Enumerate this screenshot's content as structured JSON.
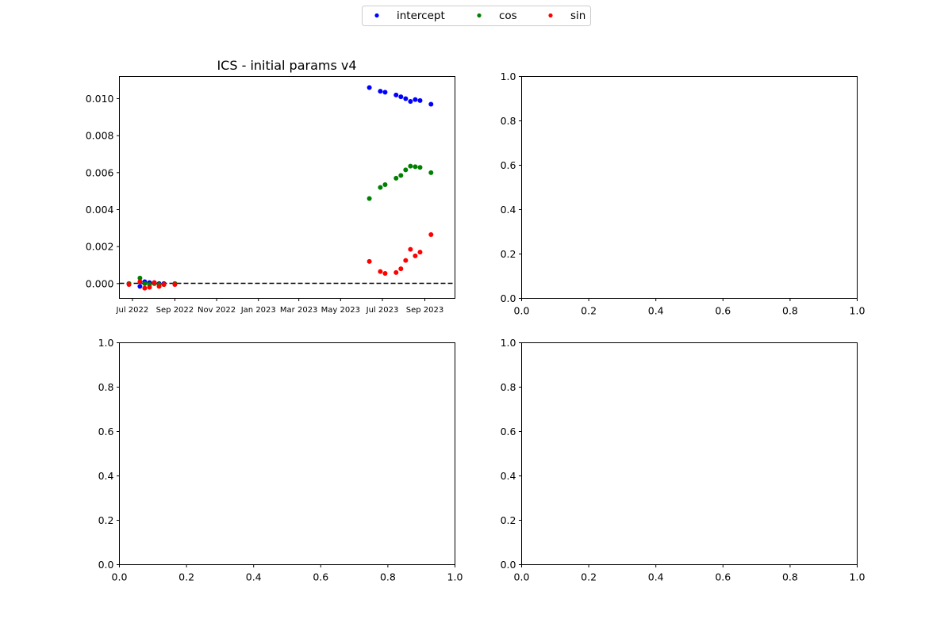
{
  "legend": {
    "placement": "top-center",
    "entries": [
      {
        "label": "intercept",
        "color": "#0000ff"
      },
      {
        "label": "cos",
        "color": "#008000"
      },
      {
        "label": "sin",
        "color": "#ff0000"
      }
    ]
  },
  "chart_data": [
    {
      "type": "scatter",
      "title": "ICS - initial params v4",
      "xlabel": "",
      "ylabel": "",
      "x_axis_type": "date",
      "xlim": [
        "2022-06-12",
        "2023-10-15"
      ],
      "ylim": [
        -0.0008,
        0.0112
      ],
      "x_ticks": [
        {
          "value": "2022-07-01",
          "label": "Jul 2022"
        },
        {
          "value": "2022-09-01",
          "label": "Sep 2022"
        },
        {
          "value": "2022-11-01",
          "label": "Nov 2022"
        },
        {
          "value": "2023-01-01",
          "label": "Jan 2023"
        },
        {
          "value": "2023-03-01",
          "label": "Mar 2023"
        },
        {
          "value": "2023-05-01",
          "label": "May 2023"
        },
        {
          "value": "2023-07-01",
          "label": "Jul 2023"
        },
        {
          "value": "2023-09-01",
          "label": "Sep 2023"
        }
      ],
      "y_ticks": [
        {
          "value": 0.0,
          "label": "0.000"
        },
        {
          "value": 0.002,
          "label": "0.002"
        },
        {
          "value": 0.004,
          "label": "0.004"
        },
        {
          "value": 0.006,
          "label": "0.006"
        },
        {
          "value": 0.008,
          "label": "0.008"
        },
        {
          "value": 0.01,
          "label": "0.010"
        }
      ],
      "reference_line": {
        "y": 0,
        "style": "dashed",
        "color": "#000000"
      },
      "grid": false,
      "series": [
        {
          "name": "intercept",
          "color": "#0000ff",
          "points": [
            {
              "x": "2022-06-26",
              "y": 0.0
            },
            {
              "x": "2022-07-12",
              "y": -0.00015
            },
            {
              "x": "2022-07-19",
              "y": 0.0001
            },
            {
              "x": "2022-07-26",
              "y": 5e-05
            },
            {
              "x": "2022-08-02",
              "y": 5e-05
            },
            {
              "x": "2022-08-09",
              "y": 0.0
            },
            {
              "x": "2022-08-16",
              "y": 0.0
            },
            {
              "x": "2022-09-01",
              "y": 0.0
            },
            {
              "x": "2023-06-12",
              "y": 0.0106
            },
            {
              "x": "2023-06-28",
              "y": 0.0104
            },
            {
              "x": "2023-07-05",
              "y": 0.01035
            },
            {
              "x": "2023-07-21",
              "y": 0.0102
            },
            {
              "x": "2023-07-28",
              "y": 0.0101
            },
            {
              "x": "2023-08-04",
              "y": 0.01
            },
            {
              "x": "2023-08-11",
              "y": 0.00985
            },
            {
              "x": "2023-08-18",
              "y": 0.00995
            },
            {
              "x": "2023-08-25",
              "y": 0.0099
            },
            {
              "x": "2023-09-10",
              "y": 0.0097
            }
          ]
        },
        {
          "name": "cos",
          "color": "#008000",
          "points": [
            {
              "x": "2022-06-26",
              "y": 0.0
            },
            {
              "x": "2022-07-12",
              "y": 0.0003
            },
            {
              "x": "2022-07-19",
              "y": 0.0
            },
            {
              "x": "2022-07-26",
              "y": -5e-05
            },
            {
              "x": "2022-08-02",
              "y": 0.0
            },
            {
              "x": "2022-08-09",
              "y": -5e-05
            },
            {
              "x": "2022-08-16",
              "y": -5e-05
            },
            {
              "x": "2022-09-01",
              "y": 0.0
            },
            {
              "x": "2023-06-12",
              "y": 0.0046
            },
            {
              "x": "2023-06-28",
              "y": 0.0052
            },
            {
              "x": "2023-07-05",
              "y": 0.00535
            },
            {
              "x": "2023-07-21",
              "y": 0.0057
            },
            {
              "x": "2023-07-28",
              "y": 0.00585
            },
            {
              "x": "2023-08-04",
              "y": 0.00615
            },
            {
              "x": "2023-08-11",
              "y": 0.00635
            },
            {
              "x": "2023-08-18",
              "y": 0.00632
            },
            {
              "x": "2023-08-25",
              "y": 0.00628
            },
            {
              "x": "2023-09-10",
              "y": 0.006
            }
          ]
        },
        {
          "name": "sin",
          "color": "#ff0000",
          "points": [
            {
              "x": "2022-06-26",
              "y": -5e-05
            },
            {
              "x": "2022-07-12",
              "y": 0.0001
            },
            {
              "x": "2022-07-19",
              "y": -0.00025
            },
            {
              "x": "2022-07-26",
              "y": -0.0002
            },
            {
              "x": "2022-08-02",
              "y": 5e-05
            },
            {
              "x": "2022-08-09",
              "y": -0.00015
            },
            {
              "x": "2022-08-16",
              "y": -5e-05
            },
            {
              "x": "2022-09-01",
              "y": -5e-05
            },
            {
              "x": "2023-06-12",
              "y": 0.0012
            },
            {
              "x": "2023-06-28",
              "y": 0.00065
            },
            {
              "x": "2023-07-05",
              "y": 0.00055
            },
            {
              "x": "2023-07-21",
              "y": 0.0006
            },
            {
              "x": "2023-07-28",
              "y": 0.0008
            },
            {
              "x": "2023-08-04",
              "y": 0.00125
            },
            {
              "x": "2023-08-11",
              "y": 0.00185
            },
            {
              "x": "2023-08-18",
              "y": 0.0015
            },
            {
              "x": "2023-08-25",
              "y": 0.0017
            },
            {
              "x": "2023-09-10",
              "y": 0.00265
            }
          ]
        }
      ]
    },
    {
      "type": "scatter",
      "title": "",
      "xlabel": "",
      "ylabel": "",
      "xlim": [
        0,
        1
      ],
      "ylim": [
        0,
        1
      ],
      "x_ticks": [
        {
          "value": 0.0,
          "label": "0.0"
        },
        {
          "value": 0.2,
          "label": "0.2"
        },
        {
          "value": 0.4,
          "label": "0.4"
        },
        {
          "value": 0.6,
          "label": "0.6"
        },
        {
          "value": 0.8,
          "label": "0.8"
        },
        {
          "value": 1.0,
          "label": "1.0"
        }
      ],
      "y_ticks": [
        {
          "value": 0.0,
          "label": "0.0"
        },
        {
          "value": 0.2,
          "label": "0.2"
        },
        {
          "value": 0.4,
          "label": "0.4"
        },
        {
          "value": 0.6,
          "label": "0.6"
        },
        {
          "value": 0.8,
          "label": "0.8"
        },
        {
          "value": 1.0,
          "label": "1.0"
        }
      ],
      "grid": false,
      "series": []
    },
    {
      "type": "scatter",
      "title": "",
      "xlabel": "",
      "ylabel": "",
      "xlim": [
        0,
        1
      ],
      "ylim": [
        0,
        1
      ],
      "x_ticks": [
        {
          "value": 0.0,
          "label": "0.0"
        },
        {
          "value": 0.2,
          "label": "0.2"
        },
        {
          "value": 0.4,
          "label": "0.4"
        },
        {
          "value": 0.6,
          "label": "0.6"
        },
        {
          "value": 0.8,
          "label": "0.8"
        },
        {
          "value": 1.0,
          "label": "1.0"
        }
      ],
      "y_ticks": [
        {
          "value": 0.0,
          "label": "0.0"
        },
        {
          "value": 0.2,
          "label": "0.2"
        },
        {
          "value": 0.4,
          "label": "0.4"
        },
        {
          "value": 0.6,
          "label": "0.6"
        },
        {
          "value": 0.8,
          "label": "0.8"
        },
        {
          "value": 1.0,
          "label": "1.0"
        }
      ],
      "grid": false,
      "series": []
    },
    {
      "type": "scatter",
      "title": "",
      "xlabel": "",
      "ylabel": "",
      "xlim": [
        0,
        1
      ],
      "ylim": [
        0,
        1
      ],
      "x_ticks": [
        {
          "value": 0.0,
          "label": "0.0"
        },
        {
          "value": 0.2,
          "label": "0.2"
        },
        {
          "value": 0.4,
          "label": "0.4"
        },
        {
          "value": 0.6,
          "label": "0.6"
        },
        {
          "value": 0.8,
          "label": "0.8"
        },
        {
          "value": 1.0,
          "label": "1.0"
        }
      ],
      "y_ticks": [
        {
          "value": 0.0,
          "label": "0.0"
        },
        {
          "value": 0.2,
          "label": "0.2"
        },
        {
          "value": 0.4,
          "label": "0.4"
        },
        {
          "value": 0.6,
          "label": "0.6"
        },
        {
          "value": 0.8,
          "label": "0.8"
        },
        {
          "value": 1.0,
          "label": "1.0"
        }
      ],
      "grid": false,
      "series": []
    }
  ]
}
